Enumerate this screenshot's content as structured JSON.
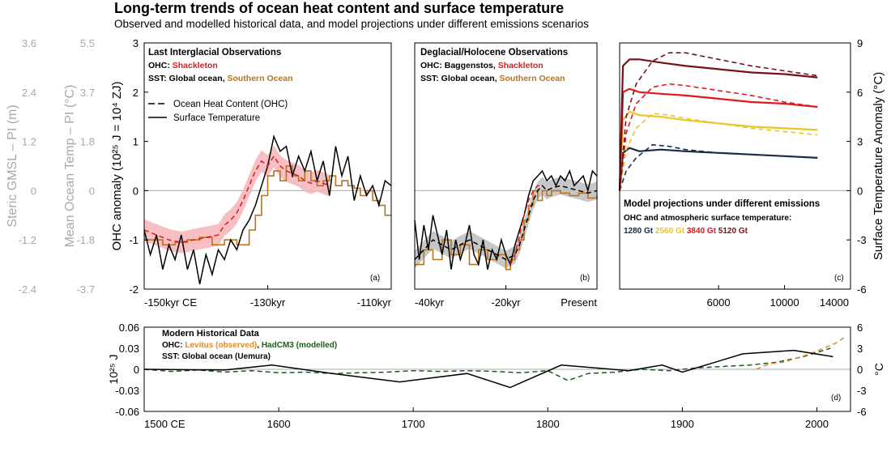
{
  "title": "Long-term trends of ocean heat content and surface temperature",
  "subtitle": "Observed and modelled historical data, and model projections under different emissions scenarios",
  "left_axes": {
    "gmsl_label": "Steric GMSL – PI (m)",
    "gmsl_ticks": [
      "3.6",
      "2.4",
      "1.2",
      "0",
      "-1.2",
      "-2.4"
    ],
    "ocean_temp_label": "Mean Ocean Temp – PI (°C)",
    "ocean_temp_ticks": [
      "5.5",
      "3.7",
      "1.8",
      "0",
      "-1.8",
      "-3.7"
    ],
    "ohc_label": "OHC anomaly (10²⁵ J = 10⁴ ZJ)",
    "ohc_ticks": [
      "3",
      "2",
      "1",
      "0",
      "-1",
      "-2"
    ]
  },
  "right_axis": {
    "label": "Surface Temperature Anomaly (°C)",
    "ticks": [
      "9",
      "6",
      "3",
      "0",
      "-3",
      "-6"
    ]
  },
  "colors": {
    "shackleton": "#e0191e",
    "shackleton_band": "#f5b4b8",
    "southern": "#b8741a",
    "global": "#000000",
    "baggenstos_band": "#bdbdbd",
    "s1280": "#1b2a4a",
    "s2560": "#e8c62a",
    "s3840": "#e0191e",
    "s5120": "#7a0f16",
    "levitus": "#e08a2a",
    "hadcm3": "#1e5a1e",
    "zero": "#a8a8a8"
  },
  "panels": {
    "a": {
      "title": "Last Interglacial Observations",
      "ohc_prefix": "OHC: ",
      "ohc_source": "Shackleton",
      "sst_prefix": "SST: Global ocean, ",
      "sst_southern": "Southern Ocean",
      "legend_ohc": "Ocean Heat Content (OHC)",
      "legend_sst": "Surface Temperature",
      "letter": "(a)",
      "xticks": [
        "-150kyr CE",
        "-130kyr",
        "-110kyr"
      ]
    },
    "b": {
      "title": "Deglacial/Holocene Observations",
      "ohc_prefix": "OHC: ",
      "ohc_source1": "Baggenstos",
      "ohc_sep": ", ",
      "ohc_source2": "Shackleton",
      "sst_prefix": "SST: Global ocean, ",
      "sst_southern": "Southern Ocean",
      "letter": "(b)",
      "xticks": [
        "-40kyr",
        "-20kyr",
        "Present"
      ]
    },
    "c": {
      "title": "Model projections under different emissions",
      "subtitle": "OHC and atmospheric surface temperature:",
      "scenario_labels": [
        "1280 Gt",
        "2560 Gt",
        "3840 Gt",
        "5120 Gt"
      ],
      "letter": "(c)",
      "xticks": [
        "6000",
        "10000",
        "14000"
      ]
    },
    "d": {
      "title": "Modern Historical Data",
      "ohc_prefix": "OHC: ",
      "ohc_levitus": "Levitus (observed)",
      "ohc_sep": ", ",
      "ohc_hadcm3": "HadCM3 (modelled)",
      "sst_text": "SST: Global ocean (Uemura)",
      "letter": "(d)",
      "ylabel_left": "10²⁵ J",
      "yticks_left": [
        "0.06",
        "0.03",
        "0",
        "-0.03",
        "-0.06"
      ],
      "ylabel_right": "°C",
      "yticks_right": [
        "6",
        "3",
        "0",
        "-3",
        "-6"
      ],
      "xticks": [
        "1500 CE",
        "1600",
        "1700",
        "1800",
        "1900",
        "2000"
      ]
    }
  },
  "chart_data": [
    {
      "panel": "a",
      "type": "line",
      "xlabel": "",
      "ylabel": "OHC anomaly (10²⁵ J = 10⁴ ZJ)",
      "xlim": [
        -150,
        -110
      ],
      "ylim": [
        -2,
        3
      ],
      "x_unit": "kyr",
      "series": [
        {
          "name": "Shackleton",
          "style": "dashed",
          "x": [
            -150,
            -148,
            -146,
            -144,
            -142,
            -140,
            -138,
            -137,
            -136,
            -135,
            -134,
            -133,
            -132,
            -131,
            -130,
            -129,
            -128,
            -127,
            -126,
            -125,
            -124,
            -123,
            -122,
            -121,
            -120
          ],
          "y": [
            -0.8,
            -0.9,
            -1.0,
            -1.05,
            -1.0,
            -0.95,
            -0.9,
            -0.7,
            -0.6,
            -0.45,
            -0.2,
            0.1,
            0.4,
            0.6,
            0.5,
            0.7,
            0.5,
            0.4,
            0.35,
            0.3,
            0.2,
            0.15,
            0.2,
            0.15,
            0.1
          ]
        },
        {
          "name": "Global ocean",
          "style": "solid",
          "x": [
            -150,
            -149,
            -148,
            -147,
            -146,
            -145,
            -144,
            -143,
            -142,
            -141,
            -140,
            -139,
            -138,
            -137,
            -136,
            -135,
            -134,
            -133,
            -132,
            -131,
            -130,
            -129,
            -128,
            -127,
            -126,
            -125,
            -124,
            -123,
            -122,
            -121,
            -120,
            -119,
            -118,
            -117,
            -116,
            -115,
            -114,
            -113,
            -112,
            -111,
            -110
          ],
          "y": [
            -0.8,
            -1.3,
            -0.9,
            -1.6,
            -1.1,
            -1.4,
            -0.9,
            -1.6,
            -1.2,
            -1.9,
            -1.3,
            -1.7,
            -1.2,
            -1.4,
            -1.0,
            -1.2,
            -0.8,
            -0.6,
            -0.3,
            0.1,
            0.5,
            1.1,
            0.8,
            0.9,
            0.3,
            0.7,
            0.4,
            0.8,
            0.2,
            0.6,
            -0.1,
            0.9,
            0.3,
            0.7,
            -0.2,
            0.3,
            -0.1,
            0.1,
            -0.3,
            0.2,
            0.1
          ]
        },
        {
          "name": "Southern Ocean",
          "style": "step",
          "x": [
            -150,
            -147,
            -145,
            -143,
            -141,
            -139,
            -137,
            -135,
            -133,
            -132,
            -131,
            -130,
            -129,
            -128,
            -127,
            -126,
            -125,
            -124,
            -123,
            -122,
            -121,
            -120,
            -119,
            -118,
            -117,
            -116,
            -115,
            -114,
            -113,
            -112,
            -111,
            -110
          ],
          "y": [
            -1.0,
            -1.1,
            -1.05,
            -1.0,
            -0.95,
            -1.1,
            -1.0,
            -1.1,
            -0.8,
            -0.5,
            -0.1,
            0.3,
            0.4,
            0.2,
            0.5,
            0.3,
            0.2,
            0.4,
            0.2,
            0.1,
            0.2,
            0.3,
            0.1,
            0.2,
            0.1,
            0.05,
            -0.1,
            0.0,
            -0.2,
            -0.3,
            -0.5,
            -0.5
          ]
        }
      ]
    },
    {
      "panel": "b",
      "type": "line",
      "xlim": [
        -40,
        0
      ],
      "ylim": [
        -2,
        3
      ],
      "x_unit": "kyr",
      "series": [
        {
          "name": "Baggenstos",
          "style": "dashed",
          "x": [
            -40,
            -38,
            -36,
            -34,
            -32,
            -30,
            -28,
            -26,
            -24,
            -22,
            -20,
            -18,
            -17,
            -16,
            -15,
            -14,
            -13,
            -12,
            -11,
            -10,
            -8,
            -6,
            -4,
            -2,
            0
          ],
          "y": [
            -1.4,
            -1.2,
            -1.0,
            -1.1,
            -1.2,
            -1.1,
            -1.0,
            -1.1,
            -1.2,
            -1.3,
            -1.4,
            -1.3,
            -1.1,
            -0.8,
            -0.5,
            -0.2,
            0.0,
            0.1,
            0.0,
            0.05,
            0.1,
            0.05,
            0.0,
            -0.05,
            0.0
          ]
        },
        {
          "name": "Shackleton",
          "style": "dashed",
          "x": [
            -19,
            -18,
            -17,
            -16,
            -15,
            -14,
            -13,
            -12
          ],
          "y": [
            -1.5,
            -1.3,
            -0.9,
            -0.5,
            -0.2,
            0.0,
            0.1,
            0.1
          ]
        },
        {
          "name": "Global ocean",
          "style": "solid",
          "x": [
            -40,
            -39,
            -38,
            -37,
            -36,
            -35,
            -34,
            -33,
            -32,
            -31,
            -30,
            -29,
            -28,
            -27,
            -26,
            -25,
            -24,
            -23,
            -22,
            -21,
            -20,
            -19,
            -18,
            -17,
            -16,
            -15,
            -14,
            -13,
            -12,
            -11,
            -10,
            -9,
            -8,
            -7,
            -6,
            -5,
            -4,
            -3,
            -2,
            -1,
            0
          ],
          "y": [
            -0.6,
            -1.4,
            -0.7,
            -1.2,
            -0.5,
            -0.9,
            -1.3,
            -0.8,
            -1.6,
            -1.0,
            -1.4,
            -1.1,
            -0.7,
            -1.3,
            -1.5,
            -1.0,
            -1.6,
            -1.2,
            -1.4,
            -1.0,
            -1.3,
            -1.5,
            -1.1,
            -0.8,
            -0.5,
            -0.1,
            0.2,
            0.3,
            0.4,
            0.2,
            0.3,
            0.1,
            0.3,
            0.2,
            0.4,
            0.1,
            0.2,
            0.3,
            0.0,
            0.4,
            0.3
          ]
        },
        {
          "name": "Southern Ocean",
          "style": "step",
          "x": [
            -40,
            -38,
            -36,
            -34,
            -32,
            -30,
            -28,
            -26,
            -24,
            -22,
            -20,
            -19,
            -18,
            -17,
            -16,
            -15,
            -14,
            -13,
            -12,
            -11,
            -10,
            -8,
            -6,
            -4,
            -2,
            0
          ],
          "y": [
            -1.5,
            -1.2,
            -1.4,
            -1.0,
            -1.3,
            -1.1,
            -1.5,
            -1.2,
            -1.4,
            -1.3,
            -1.6,
            -1.4,
            -1.2,
            -1.0,
            -0.6,
            -0.3,
            0.0,
            -0.2,
            0.0,
            -0.1,
            0.0,
            -0.05,
            -0.1,
            -0.05,
            -0.15,
            -0.1
          ]
        }
      ]
    },
    {
      "panel": "c",
      "type": "line",
      "xlim": [
        0,
        14000
      ],
      "ylim": [
        -6,
        9
      ],
      "series": [
        {
          "name": "1280 Gt",
          "style": "solid",
          "x": [
            0,
            200,
            600,
            1200,
            2500,
            4000,
            6000,
            8000,
            10000,
            12000
          ],
          "y": [
            0,
            2.3,
            2.6,
            2.4,
            2.5,
            2.4,
            2.3,
            2.2,
            2.1,
            2.0
          ]
        },
        {
          "name": "1280 Gt",
          "style": "dashed",
          "x": [
            0,
            400,
            1000,
            2000,
            3000,
            4000,
            6000,
            8000,
            10000,
            12000
          ],
          "y": [
            0,
            1.2,
            2.0,
            2.8,
            2.7,
            2.5,
            2.3,
            2.2,
            2.1,
            2.0
          ]
        },
        {
          "name": "2560 Gt",
          "style": "solid",
          "x": [
            0,
            200,
            600,
            1200,
            2500,
            4000,
            6000,
            8000,
            10000,
            12000
          ],
          "y": [
            0,
            4.3,
            4.8,
            4.6,
            4.5,
            4.3,
            4.1,
            3.9,
            3.8,
            3.7
          ]
        },
        {
          "name": "2560 Gt",
          "style": "dashed",
          "x": [
            0,
            400,
            1000,
            2000,
            3000,
            4000,
            6000,
            8000,
            10000,
            12000
          ],
          "y": [
            0,
            2.5,
            3.8,
            4.7,
            4.6,
            4.4,
            4.1,
            3.8,
            3.6,
            3.4
          ]
        },
        {
          "name": "3840 Gt",
          "style": "solid",
          "x": [
            0,
            200,
            600,
            1200,
            2500,
            4000,
            6000,
            8000,
            10000,
            12000
          ],
          "y": [
            0,
            6.0,
            6.2,
            6.0,
            5.9,
            5.8,
            5.6,
            5.4,
            5.3,
            5.1
          ]
        },
        {
          "name": "3840 Gt",
          "style": "dashed",
          "x": [
            0,
            400,
            1000,
            2000,
            3000,
            4000,
            6000,
            8000,
            10000,
            12000
          ],
          "y": [
            0,
            3.5,
            5.3,
            6.3,
            6.5,
            6.4,
            6.1,
            5.8,
            5.4,
            5.1
          ]
        },
        {
          "name": "5120 Gt",
          "style": "solid",
          "x": [
            0,
            200,
            600,
            1200,
            2500,
            4000,
            6000,
            8000,
            10000,
            12000
          ],
          "y": [
            0,
            7.6,
            8.0,
            8.0,
            7.8,
            7.6,
            7.4,
            7.2,
            7.1,
            6.9
          ]
        },
        {
          "name": "5120 Gt",
          "style": "dashed",
          "x": [
            0,
            400,
            1000,
            2000,
            3000,
            4000,
            6000,
            8000,
            10000,
            12000
          ],
          "y": [
            0,
            4.5,
            6.5,
            7.9,
            8.4,
            8.4,
            8.0,
            7.6,
            7.3,
            7.0
          ]
        }
      ]
    },
    {
      "panel": "d",
      "type": "line",
      "xlim": [
        1500,
        2025
      ],
      "ylim": [
        -0.06,
        0.06
      ],
      "series": [
        {
          "name": "Global ocean (Uemura)",
          "style": "solid",
          "x": [
            1500,
            1560,
            1595,
            1640,
            1690,
            1740,
            1772,
            1810,
            1860,
            1885,
            1900,
            1945,
            1983,
            2012
          ],
          "y": [
            0.0,
            -0.001,
            0.006,
            -0.006,
            -0.018,
            -0.006,
            -0.026,
            0.006,
            -0.002,
            0.006,
            -0.004,
            0.022,
            0.027,
            0.018
          ]
        },
        {
          "name": "Levitus (observed)",
          "style": "dashed",
          "x": [
            1955,
            1965,
            1975,
            1985,
            1995,
            2005,
            2015,
            2020
          ],
          "y": [
            0.0,
            0.008,
            0.01,
            0.016,
            0.022,
            0.03,
            0.038,
            0.045
          ]
        },
        {
          "name": "HadCM3 (modelled)",
          "style": "dashed",
          "x": [
            1500,
            1520,
            1540,
            1560,
            1580,
            1600,
            1620,
            1640,
            1660,
            1680,
            1700,
            1720,
            1740,
            1760,
            1780,
            1800,
            1815,
            1830,
            1850,
            1870,
            1890,
            1910,
            1930,
            1950,
            1970,
            1990,
            2010
          ],
          "y": [
            0.0,
            -0.003,
            -0.001,
            -0.004,
            -0.002,
            -0.005,
            -0.004,
            -0.006,
            -0.005,
            -0.004,
            -0.002,
            -0.003,
            -0.002,
            -0.003,
            -0.005,
            -0.002,
            -0.016,
            -0.006,
            -0.004,
            0.0,
            -0.002,
            0.002,
            0.004,
            0.006,
            0.01,
            0.018,
            0.03
          ]
        }
      ]
    }
  ]
}
